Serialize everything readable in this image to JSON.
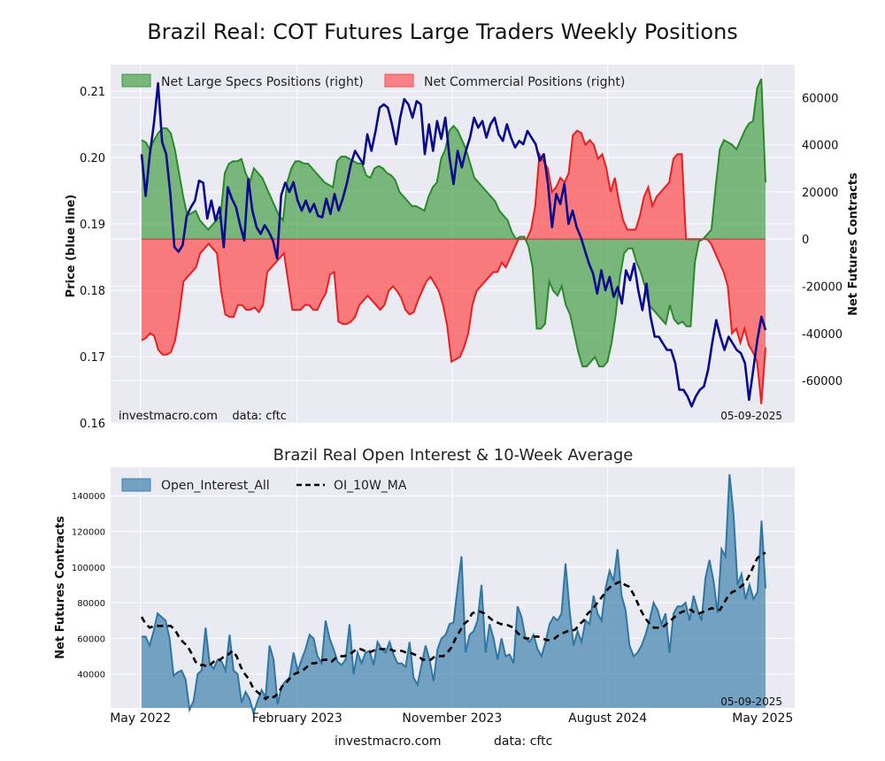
{
  "title": "Brazil Real: COT Futures Large Traders Weekly Positions",
  "footer": {
    "site": "investmacro.com",
    "source": "data: cftc"
  },
  "chart_data": [
    {
      "type": "line",
      "title": "",
      "ylabel_left": "Price (blue line)",
      "ylabel_right": "Net Futures Contracts",
      "ylim_left": [
        0.16,
        0.214
      ],
      "yticks_left": [
        0.16,
        0.17,
        0.18,
        0.19,
        0.2,
        0.21
      ],
      "ylim_right": [
        -78000,
        74000
      ],
      "yticks_right": [
        -60000,
        -40000,
        -20000,
        0,
        20000,
        40000,
        60000
      ],
      "watermark": "investmacro.com    data: cftc",
      "date_label": "05-09-2025",
      "colors": {
        "price": "#0a0a8c",
        "specs": "#3a9a3a",
        "commercial": "#ff4a4a"
      },
      "x_start": "2022-05-03",
      "x_end": "2025-05-06",
      "price": [
        0.2005,
        0.1942,
        0.2005,
        0.2051,
        0.2112,
        0.2023,
        0.2005,
        0.1945,
        0.1865,
        0.1858,
        0.1868,
        0.1912,
        0.1925,
        0.1935,
        0.1965,
        0.1962,
        0.1908,
        0.1935,
        0.1905,
        0.1925,
        0.1865,
        0.1955,
        0.1938,
        0.1925,
        0.1898,
        0.1875,
        0.1968,
        0.192,
        0.1895,
        0.1885,
        0.1898,
        0.1888,
        0.1875,
        0.1848,
        0.1943,
        0.1962,
        0.1948,
        0.1963,
        0.1935,
        0.192,
        0.1935,
        0.1918,
        0.193,
        0.1912,
        0.191,
        0.1938,
        0.1915,
        0.1945,
        0.192,
        0.1938,
        0.1961,
        0.199,
        0.201,
        0.2,
        0.199,
        0.2035,
        0.201,
        0.204,
        0.2075,
        0.208,
        0.2075,
        0.205,
        0.202,
        0.206,
        0.2088,
        0.208,
        0.206,
        0.2085,
        0.208,
        0.2005,
        0.205,
        0.201,
        0.2055,
        0.2028,
        0.206,
        0.2,
        0.196,
        0.201,
        0.1985,
        0.201,
        0.203,
        0.206,
        0.2045,
        0.2055,
        0.203,
        0.205,
        0.206,
        0.2035,
        0.2025,
        0.205,
        0.203,
        0.2015,
        0.2025,
        0.202,
        0.204,
        0.203,
        0.202,
        0.1995,
        0.2005,
        0.196,
        0.1895,
        0.1945,
        0.193,
        0.196,
        0.19,
        0.192,
        0.1895,
        0.188,
        0.186,
        0.184,
        0.1825,
        0.1795,
        0.183,
        0.18,
        0.182,
        0.179,
        0.1805,
        0.178,
        0.183,
        0.1815,
        0.184,
        0.18,
        0.177,
        0.181,
        0.176,
        0.173,
        0.173,
        0.172,
        0.171,
        0.171,
        0.169,
        0.165,
        0.165,
        0.164,
        0.1625,
        0.164,
        0.165,
        0.1655,
        0.168,
        0.172,
        0.1755,
        0.173,
        0.171,
        0.173,
        0.172,
        0.171,
        0.1705,
        0.169,
        0.1635,
        0.168,
        0.1725,
        0.176,
        0.174
      ],
      "specs": [
        42000,
        41000,
        38000,
        42000,
        45000,
        47000,
        47000,
        45000,
        38000,
        28000,
        18000,
        10000,
        11000,
        12000,
        8000,
        6000,
        4000,
        6000,
        8000,
        10000,
        28000,
        32000,
        33000,
        33000,
        34000,
        28000,
        24000,
        30000,
        28000,
        26000,
        22000,
        18000,
        14000,
        10000,
        8000,
        24000,
        30000,
        33000,
        33000,
        32000,
        32000,
        30000,
        28000,
        26000,
        24000,
        23000,
        22000,
        33000,
        35000,
        35000,
        34000,
        33000,
        32000,
        32000,
        27000,
        26000,
        30000,
        31000,
        30000,
        28000,
        27000,
        25000,
        20000,
        18000,
        16000,
        14000,
        14000,
        13000,
        12000,
        18000,
        22000,
        24000,
        34000,
        38000,
        46000,
        48000,
        46000,
        42000,
        38000,
        32000,
        26000,
        24000,
        22000,
        20000,
        18000,
        16000,
        12000,
        10000,
        8000,
        3000,
        0,
        1000,
        1000,
        -3000,
        -12000,
        -38000,
        -38000,
        -36000,
        -18000,
        -22000,
        -24000,
        -20000,
        -28000,
        -32000,
        -40000,
        -48000,
        -54000,
        -54000,
        -52000,
        -50000,
        -54000,
        -54000,
        -52000,
        -44000,
        -32000,
        -16000,
        -6000,
        -4000,
        -4000,
        -10000,
        -14000,
        -20000,
        -28000,
        -30000,
        -32000,
        -34000,
        -36000,
        -28000,
        -34000,
        -36000,
        -35000,
        -37000,
        -37000,
        -10000,
        -1000,
        0,
        2000,
        4000,
        22000,
        38000,
        42000,
        41000,
        40000,
        38000,
        42000,
        46000,
        49000,
        50000,
        64000,
        68000,
        24000
      ],
      "commercial": [
        -43000,
        -42000,
        -40000,
        -41000,
        -47000,
        -49000,
        -49000,
        -48000,
        -43000,
        -32000,
        -18000,
        -16000,
        -14000,
        -12000,
        -6000,
        -4000,
        -2000,
        -4000,
        -6000,
        -22000,
        -32000,
        -33000,
        -33000,
        -28000,
        -28000,
        -30000,
        -30000,
        -29000,
        -31000,
        -28000,
        -14000,
        -12000,
        -10000,
        -8000,
        -6000,
        -18000,
        -30000,
        -30000,
        -30000,
        -28000,
        -28000,
        -30000,
        -30000,
        -26000,
        -23000,
        -15000,
        -14000,
        -35000,
        -36000,
        -36000,
        -35000,
        -33000,
        -28000,
        -26000,
        -24000,
        -26000,
        -28000,
        -30000,
        -28000,
        -22000,
        -20000,
        -22000,
        -25000,
        -30000,
        -32000,
        -31000,
        -26000,
        -22000,
        -18000,
        -16000,
        -19000,
        -22000,
        -28000,
        -37000,
        -52000,
        -51000,
        -50000,
        -46000,
        -40000,
        -28000,
        -22000,
        -20000,
        -18000,
        -16000,
        -14000,
        -14000,
        -10000,
        -12000,
        -8000,
        -4000,
        0,
        0,
        0,
        4000,
        14000,
        36000,
        33000,
        30000,
        20000,
        22000,
        26000,
        24000,
        28000,
        44000,
        46000,
        45000,
        40000,
        42000,
        40000,
        34000,
        36000,
        30000,
        20000,
        26000,
        16000,
        8000,
        4000,
        4000,
        4000,
        10000,
        18000,
        22000,
        14000,
        18000,
        20000,
        22000,
        24000,
        34000,
        36000,
        36000,
        0,
        0,
        0,
        0,
        0,
        0,
        -2000,
        -6000,
        -10000,
        -14000,
        -20000,
        -40000,
        -38000,
        -44000,
        -38000,
        -45000,
        -48000,
        -52000,
        -70000,
        -46000
      ]
    },
    {
      "type": "area",
      "title": "Brazil Real Open Interest & 10-Week Average",
      "ylabel": "Net Futures Contracts",
      "ylim": [
        21000,
        156000
      ],
      "yticks": [
        40000,
        60000,
        80000,
        100000,
        120000,
        140000
      ],
      "date_label": "05-09-2025",
      "xticks": [
        "May 2022",
        "February 2023",
        "November 2023",
        "August 2024",
        "May 2025"
      ],
      "xticks_dates": [
        "2022-05-01",
        "2023-02-01",
        "2023-11-01",
        "2024-08-01",
        "2025-05-01"
      ],
      "series": [
        {
          "name": "Open_Interest_All",
          "color": "#3f82ad"
        },
        {
          "name": "OI_10W_MA",
          "color": "#000000"
        }
      ],
      "open_interest": [
        61000,
        61000,
        56000,
        64000,
        74000,
        72000,
        70000,
        60000,
        39000,
        41000,
        42000,
        37000,
        20000,
        25000,
        40000,
        42000,
        66000,
        46000,
        43000,
        48000,
        47000,
        42000,
        62000,
        42000,
        40000,
        24000,
        30000,
        26000,
        18000,
        25000,
        31000,
        27000,
        56000,
        48000,
        23000,
        33000,
        36000,
        38000,
        52000,
        42000,
        48000,
        54000,
        62000,
        60000,
        50000,
        46000,
        70000,
        60000,
        54000,
        47000,
        45000,
        48000,
        68000,
        40000,
        52000,
        46000,
        52000,
        53000,
        45000,
        58000,
        54000,
        52000,
        58000,
        51000,
        46000,
        46000,
        44000,
        58000,
        38000,
        34000,
        45000,
        56000,
        48000,
        36000,
        54000,
        60000,
        62000,
        68000,
        69000,
        88000,
        106000,
        52000,
        62000,
        64000,
        70000,
        90000,
        52000,
        68000,
        60000,
        48000,
        60000,
        50000,
        51000,
        46000,
        78000,
        72000,
        60000,
        58000,
        62000,
        54000,
        50000,
        58000,
        68000,
        72000,
        70000,
        74000,
        102000,
        76000,
        56000,
        64000,
        58000,
        70000,
        68000,
        84000,
        74000,
        70000,
        88000,
        98000,
        92000,
        110000,
        84000,
        76000,
        56000,
        50000,
        52000,
        56000,
        62000,
        70000,
        80000,
        76000,
        68000,
        74000,
        52000,
        74000,
        78000,
        78000,
        80000,
        70000,
        84000,
        76000,
        70000,
        94000,
        104000,
        92000,
        74000,
        110000,
        106000,
        152000,
        130000,
        90000,
        96000,
        82000,
        90000,
        82000,
        86000,
        126000,
        88000
      ],
      "oi_ma": [
        72000,
        68000,
        66000,
        67000,
        67000,
        67000,
        67000,
        67000,
        65000,
        61000,
        58000,
        56000,
        52000,
        47000,
        45000,
        45000,
        44000,
        46000,
        48000,
        48000,
        50000,
        51000,
        53000,
        50000,
        44000,
        40000,
        37000,
        32000,
        30000,
        28000,
        26000,
        28000,
        27000,
        29000,
        33000,
        35000,
        38000,
        40000,
        41000,
        42000,
        44000,
        46000,
        46000,
        47000,
        48000,
        48000,
        47000,
        49000,
        50000,
        50000,
        51000,
        52000,
        54000,
        54000,
        53000,
        52000,
        53000,
        54000,
        54000,
        54000,
        54000,
        53000,
        53000,
        53000,
        52000,
        52000,
        51000,
        50000,
        48000,
        48000,
        48000,
        50000,
        50000,
        50000,
        52000,
        55000,
        60000,
        64000,
        68000,
        70000,
        74000,
        75000,
        75000,
        74000,
        72000,
        70000,
        69000,
        68000,
        68000,
        67000,
        66000,
        63000,
        61000,
        60000,
        60000,
        61000,
        61000,
        60000,
        59000,
        59000,
        60000,
        62000,
        63000,
        64000,
        64000,
        65000,
        68000,
        70000,
        74000,
        76000,
        79000,
        82000,
        85000,
        88000,
        90000,
        91000,
        92000,
        90000,
        89000,
        85000,
        80000,
        75000,
        71000,
        68000,
        66000,
        66000,
        66000,
        68000,
        70000,
        72000,
        74000,
        75000,
        76000,
        76000,
        74000,
        74000,
        75000,
        76000,
        77000,
        76000,
        76000,
        80000,
        84000,
        86000,
        87000,
        89000,
        91000,
        95000,
        100000,
        105000,
        107000,
        108000
      ]
    }
  ]
}
